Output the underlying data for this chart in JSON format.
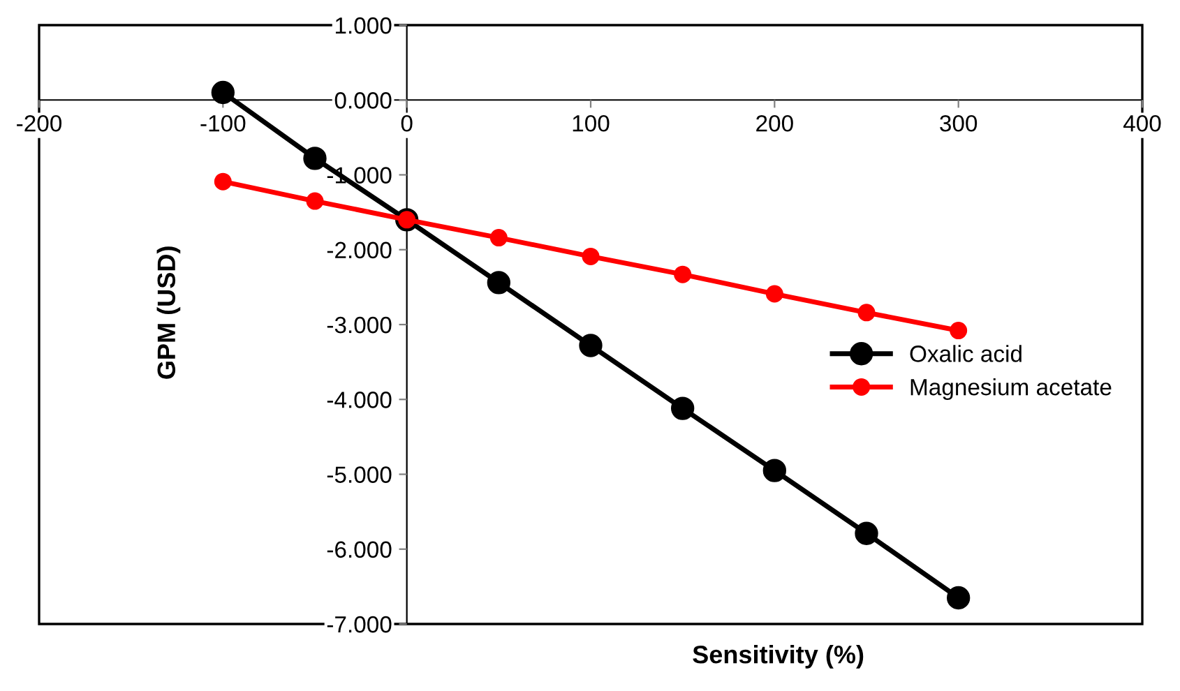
{
  "chart_data": {
    "type": "line",
    "xlabel": "Sensitivity (%)",
    "ylabel": "GPM (USD)",
    "x": [
      -100,
      -50,
      0,
      50,
      100,
      150,
      200,
      250,
      300
    ],
    "series": [
      {
        "name": "Oxalic acid",
        "color": "#000000",
        "values": [
          0.1,
          -0.78,
          -1.6,
          -2.44,
          -3.28,
          -4.12,
          -4.95,
          -5.79,
          -6.65
        ]
      },
      {
        "name": "Magnesium acetate",
        "color": "#ff0000",
        "values": [
          -1.09,
          -1.35,
          -1.6,
          -1.84,
          -2.09,
          -2.33,
          -2.59,
          -2.84,
          -3.08
        ]
      }
    ],
    "xlim": [
      -200,
      400
    ],
    "xticks": [
      -200,
      -100,
      0,
      100,
      200,
      300,
      400
    ],
    "ylim": [
      -7,
      1
    ],
    "yticks": [
      {
        "value": 1,
        "label": "1.000"
      },
      {
        "value": 0,
        "label": "0.000"
      },
      {
        "value": -1,
        "label": "-1.000"
      },
      {
        "value": -2,
        "label": "-2.000"
      },
      {
        "value": -3,
        "label": "-3.000"
      },
      {
        "value": -4,
        "label": "-4.000"
      },
      {
        "value": -5,
        "label": "-5.000"
      },
      {
        "value": -6,
        "label": "-6.000"
      },
      {
        "value": -7,
        "label": "-7.000"
      }
    ],
    "marker": "circle",
    "line_style": "solid",
    "grid": false,
    "legend": "right"
  }
}
